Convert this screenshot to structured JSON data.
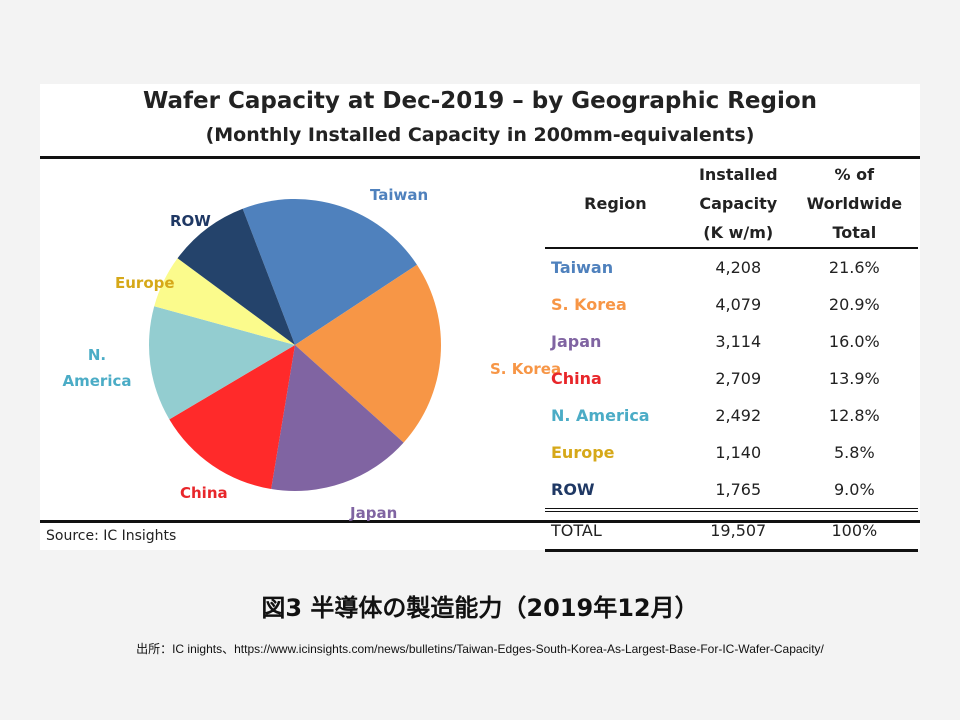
{
  "chart_data": {
    "type": "pie",
    "title": "Wafer Capacity at Dec-2019 – by Geographic Region",
    "subtitle": "(Monthly Installed Capacity in 200mm-equivalents)",
    "slices": [
      {
        "label": "Taiwan",
        "value": 4208,
        "percent": "21.6%",
        "color": "#4f81bd",
        "label_color": "#4f81bd",
        "capacity": "4,208"
      },
      {
        "label": "S. Korea",
        "value": 4079,
        "percent": "20.9%",
        "color": "#f79646",
        "label_color": "#f79646",
        "capacity": "4,079"
      },
      {
        "label": "Japan",
        "value": 3114,
        "percent": "16.0%",
        "color": "#8064a2",
        "label_color": "#8064a2",
        "capacity": "3,114"
      },
      {
        "label": "China",
        "value": 2709,
        "percent": "13.9%",
        "color": "#ff2a2a",
        "label_color": "#e8262a",
        "capacity": "2,709"
      },
      {
        "label": "N. America",
        "value": 2492,
        "percent": "12.8%",
        "color": "#93cdd0",
        "label_color": "#4bacc6",
        "capacity": "2,492"
      },
      {
        "label": "Europe",
        "value": 1140,
        "percent": "5.8%",
        "color": "#fbfb8c",
        "label_color": "#d6a819",
        "capacity": "1,140"
      },
      {
        "label": "ROW",
        "value": 1765,
        "percent": "9.0%",
        "color": "#24436b",
        "label_color": "#1f3864",
        "capacity": "1,765"
      }
    ],
    "table": {
      "headers": [
        "Region",
        "Installed Capacity (K w/m)",
        "% of Worldwide Total"
      ],
      "header_lines": [
        [
          "Region"
        ],
        [
          "Installed",
          "Capacity",
          "(K w/m)"
        ],
        [
          "% of",
          "Worldwide",
          "Total"
        ]
      ],
      "total": {
        "label": "TOTAL",
        "capacity": "19,507",
        "percent": "100%"
      }
    },
    "source": "Source:  IC Insights"
  },
  "caption": "図3  半導体の製造能力（2019年12月）",
  "citation": "出所：IC inights、https://www.icinsights.com/news/bulletins/Taiwan-Edges-South-Korea-As-Largest-Base-For-IC-Wafer-Capacity/"
}
